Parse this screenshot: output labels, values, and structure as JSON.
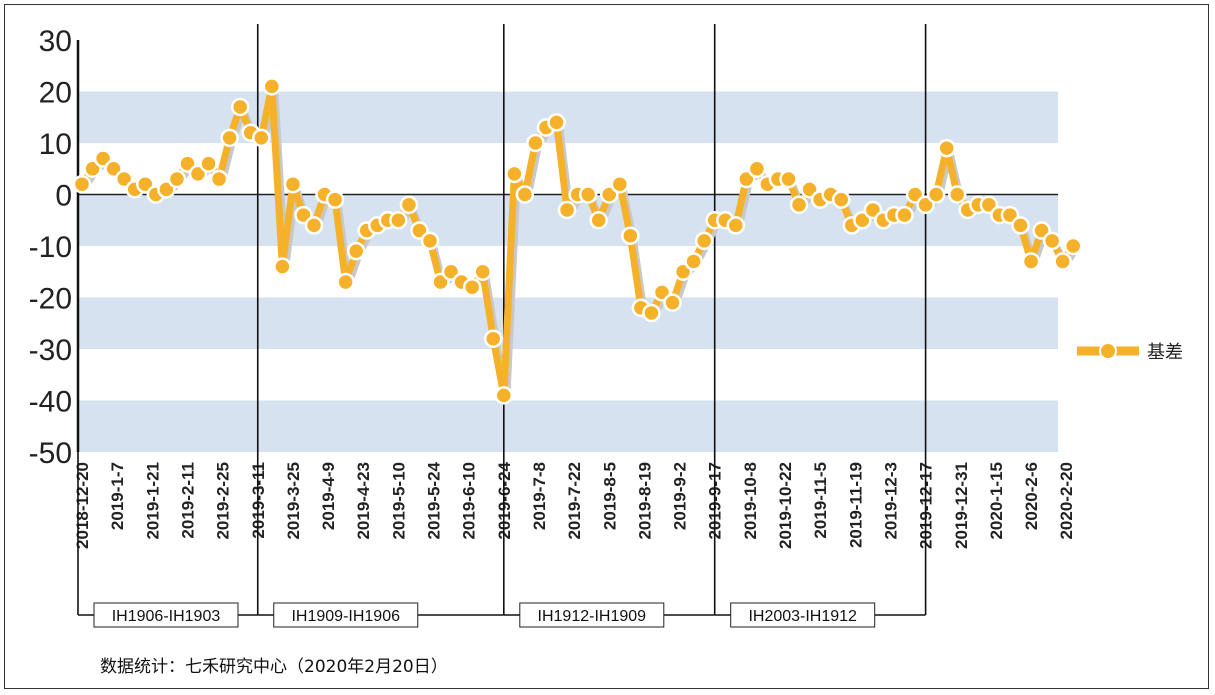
{
  "source_note": "数据统计：七禾研究中心（2020年2月20日）",
  "colors": {
    "series": "#F5B12A",
    "marker_fill": "#F5B12A",
    "marker_stroke": "#ffffff",
    "band": "#D6E2EF",
    "line": "#111111"
  },
  "chart_data": {
    "type": "line",
    "title": "",
    "xlabel": "",
    "ylabel": "",
    "ylim": [
      -50,
      30
    ],
    "yticks": [
      30,
      20,
      10,
      0,
      -10,
      -20,
      -30,
      -40,
      -50
    ],
    "legend": {
      "label": "基差",
      "placement": "right"
    },
    "grid": "alternating horizontal bands",
    "x_tick_labels": [
      "2018-12-20",
      "2019-1-7",
      "2019-1-21",
      "2019-2-11",
      "2019-2-25",
      "2019-3-11",
      "2019-3-25",
      "2019-4-9",
      "2019-4-23",
      "2019-5-10",
      "2019-5-24",
      "2019-6-10",
      "2019-6-24",
      "2019-7-8",
      "2019-7-22",
      "2019-8-5",
      "2019-8-19",
      "2019-9-2",
      "2019-9-17",
      "2019-10-8",
      "2019-10-22",
      "2019-11-5",
      "2019-11-19",
      "2019-12-3",
      "2019-12-17",
      "2019-12-31",
      "2020-1-15",
      "2020-2-6",
      "2020-2-20"
    ],
    "contract_periods": [
      {
        "label": "IH1906-IH1903",
        "end_tick": 5
      },
      {
        "label": "IH1909-IH1906",
        "end_tick": 12
      },
      {
        "label": "IH1912-IH1909",
        "end_tick": 18
      },
      {
        "label": "IH2003-IH1912",
        "end_tick": 24
      }
    ],
    "series": [
      {
        "name": "基差",
        "x": [
          0,
          0.3,
          0.6,
          0.9,
          1.2,
          1.5,
          1.8,
          2.1,
          2.4,
          2.7,
          3.0,
          3.3,
          3.6,
          3.9,
          4.2,
          4.5,
          4.8,
          5.1,
          5.4,
          5.7,
          6.0,
          6.3,
          6.6,
          6.9,
          7.2,
          7.5,
          7.8,
          8.1,
          8.4,
          8.7,
          9.0,
          9.3,
          9.6,
          9.9,
          10.2,
          10.5,
          10.8,
          11.1,
          11.4,
          11.7,
          12.0,
          12.3,
          12.6,
          12.9,
          13.2,
          13.5,
          13.8,
          14.1,
          14.4,
          14.7,
          15.0,
          15.3,
          15.6,
          15.9,
          16.2,
          16.5,
          16.8,
          17.1,
          17.4,
          17.7,
          18.0,
          18.3,
          18.6,
          18.9,
          19.2,
          19.5,
          19.8,
          20.1,
          20.4,
          20.7,
          21.0,
          21.3,
          21.6,
          21.9,
          22.2,
          22.5,
          22.8,
          23.1,
          23.4,
          23.7,
          24.0,
          24.3,
          24.6,
          24.9,
          25.2,
          25.5,
          25.8,
          26.1,
          26.4,
          26.7,
          27.0,
          27.3,
          27.6,
          27.9,
          28.2
        ],
        "values": [
          2,
          5,
          7,
          5,
          3,
          1,
          2,
          0,
          1,
          3,
          6,
          4,
          6,
          3,
          11,
          17,
          12,
          11,
          21,
          -14,
          2,
          -4,
          -6,
          0,
          -1,
          -17,
          -11,
          -7,
          -6,
          -5,
          -5,
          -2,
          -7,
          -9,
          -17,
          -15,
          -17,
          -18,
          -15,
          -28,
          -39,
          4,
          0,
          10,
          13,
          14,
          -3,
          0,
          0,
          -5,
          0,
          2,
          -8,
          -22,
          -23,
          -19,
          -21,
          -15,
          -13,
          -9,
          -5,
          -5,
          -6,
          3,
          5,
          2,
          3,
          3,
          -2,
          1,
          -1,
          0,
          -1,
          -6,
          -5,
          -3,
          -5,
          -4,
          -4,
          0,
          -2,
          0,
          9,
          0,
          -3,
          -2,
          -2,
          -4,
          -4,
          -6,
          -13,
          -7,
          -9,
          -13,
          -10
        ]
      }
    ]
  }
}
